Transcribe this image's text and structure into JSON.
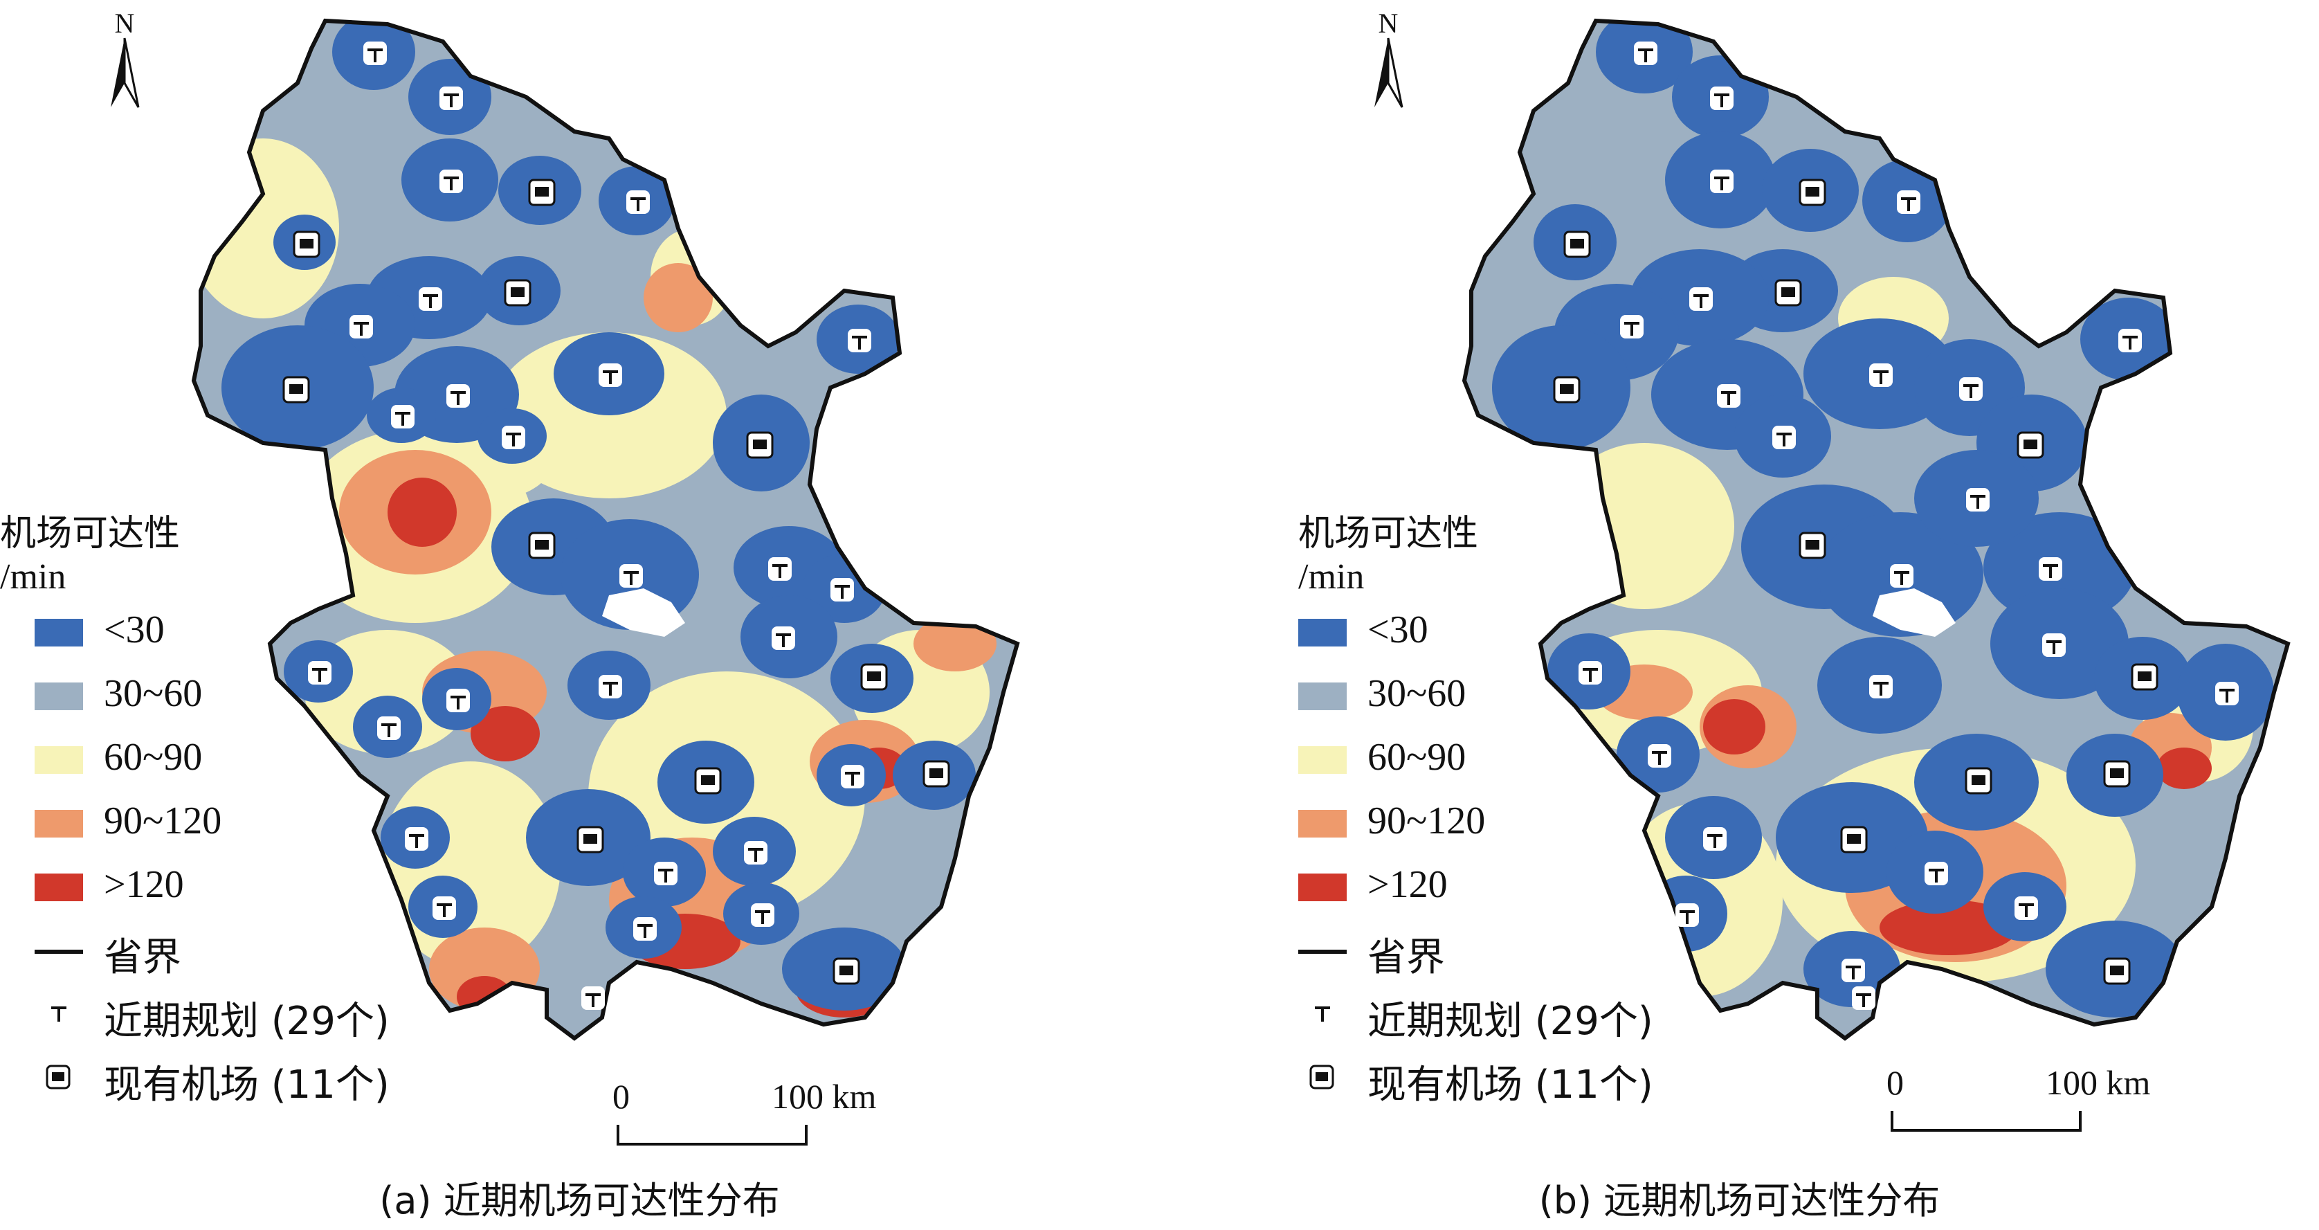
{
  "colors": {
    "c1": "#3a6bb5",
    "c2": "#9db0c2",
    "c3": "#f7f3b8",
    "c4": "#ee9a6c",
    "c5": "#d1382b",
    "boundary": "#111111",
    "lake": "#ffffff"
  },
  "panels": [
    {
      "caption": "(a) 近期机场可达性分布",
      "north": "N",
      "legend": {
        "title": "机场可达性",
        "unit": "/min",
        "classes": [
          {
            "label": "<30",
            "color": "#3a6bb5"
          },
          {
            "label": "30~60",
            "color": "#9db0c2"
          },
          {
            "label": "60~90",
            "color": "#f7f3b8"
          },
          {
            "label": "90~120",
            "color": "#ee9a6c"
          },
          {
            "label": ">120",
            "color": "#d1382b"
          }
        ],
        "boundary_label": "省界",
        "planned_label": "近期规划 (29个)",
        "existing_label": "现有机场 (11个)"
      },
      "scale": {
        "zero": "0",
        "max": "100 km"
      }
    },
    {
      "caption": "(b) 远期机场可达性分布",
      "north": "N",
      "legend": {
        "title": "机场可达性",
        "unit": "/min",
        "classes": [
          {
            "label": "<30",
            "color": "#3a6bb5"
          },
          {
            "label": "30~60",
            "color": "#9db0c2"
          },
          {
            "label": "60~90",
            "color": "#f7f3b8"
          },
          {
            "label": "90~120",
            "color": "#ee9a6c"
          },
          {
            "label": ">120",
            "color": "#d1382b"
          }
        ],
        "boundary_label": "省界",
        "planned_label": "近期规划 (29个)",
        "existing_label": "现有机场 (11个)"
      },
      "scale": {
        "zero": "0",
        "max": "100 km"
      }
    }
  ]
}
